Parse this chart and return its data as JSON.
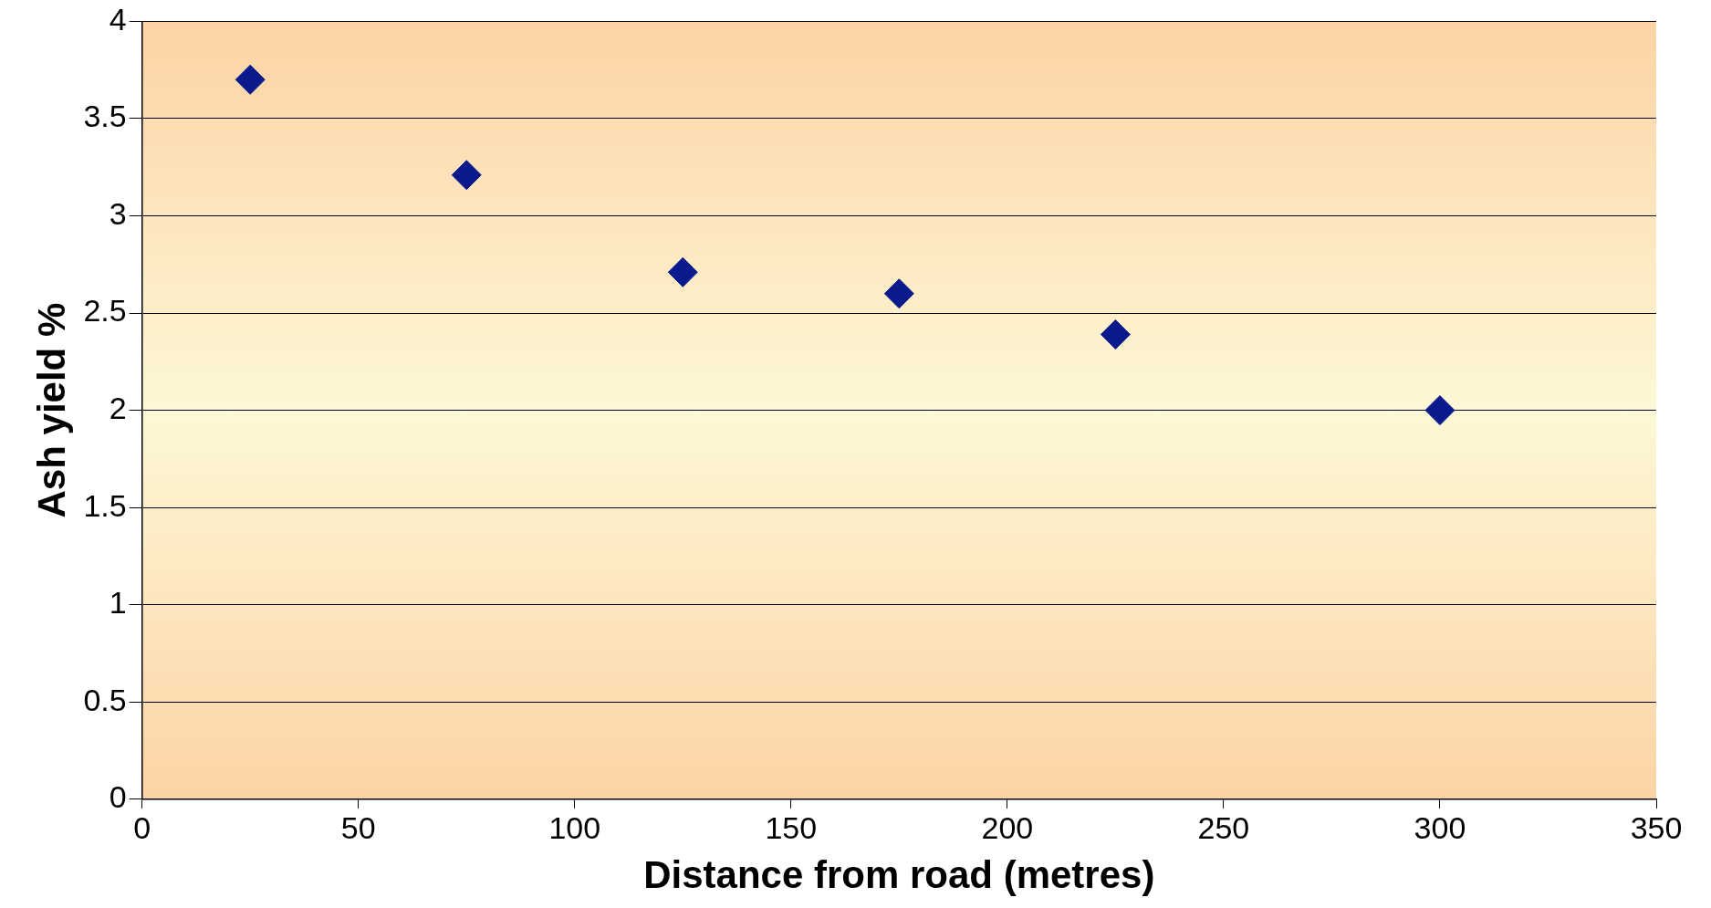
{
  "chart_data": {
    "type": "scatter",
    "xlabel": "Distance from road (metres)",
    "ylabel": "Ash yield %",
    "x": [
      25,
      75,
      125,
      175,
      225,
      300
    ],
    "series": [
      {
        "color": "#0a1a8c",
        "values": [
          3.7,
          3.21,
          2.71,
          2.6,
          2.39,
          2.0
        ]
      }
    ],
    "xlim": [
      0,
      350
    ],
    "xticks": [
      0,
      50,
      100,
      150,
      200,
      250,
      300,
      350
    ],
    "ylim": [
      0,
      4
    ],
    "yticks": [
      0,
      0.5,
      1,
      1.5,
      2,
      2.5,
      3,
      3.5,
      4
    ],
    "grid": "y",
    "legend": false,
    "marker": "diamond"
  }
}
